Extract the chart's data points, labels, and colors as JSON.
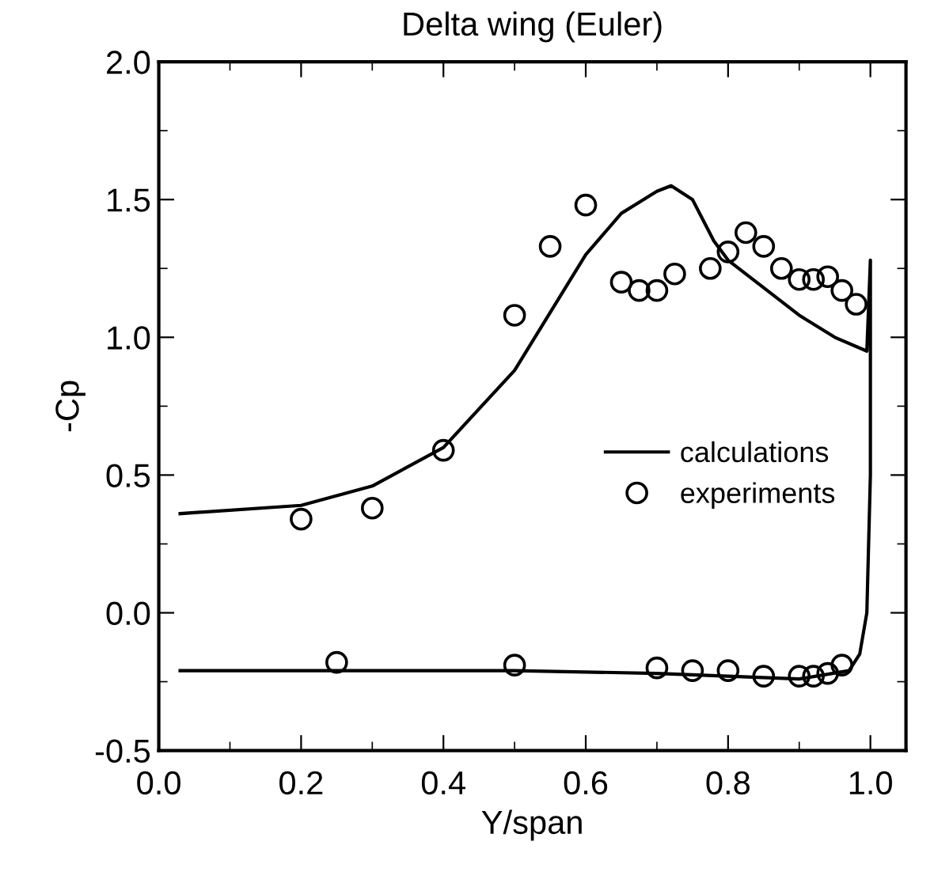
{
  "chart_data": {
    "type": "line",
    "title": "Delta wing (Euler)",
    "xlabel": "Y/span",
    "ylabel": "-Cp",
    "xlim": [
      0,
      1.05
    ],
    "ylim": [
      -0.5,
      2.0
    ],
    "xticks": [
      {
        "value": 0.0,
        "label": "0.0"
      },
      0.2,
      0.4,
      0.6,
      0.8,
      {
        "value": 1.0,
        "label": "1.0"
      }
    ],
    "yticks": [
      {
        "value": -0.5,
        "label": "-0.5"
      },
      {
        "value": 0.0,
        "label": "0.0"
      },
      0.5,
      {
        "value": 1.0,
        "label": "1.0"
      },
      1.5,
      {
        "value": 2.0,
        "label": "2.0"
      }
    ],
    "grid": false,
    "legend": "right",
    "series": [
      {
        "name": "calculations",
        "color": "#000000",
        "marker": "none",
        "line_style": "solid",
        "x": [
          0.03,
          0.2,
          0.3,
          0.4,
          0.5,
          0.6,
          0.65,
          0.7,
          0.72,
          0.75,
          0.78,
          0.8,
          0.85,
          0.9,
          0.95,
          0.995,
          1.0,
          1.0,
          0.995,
          0.985,
          0.97,
          0.9,
          0.8,
          0.7,
          0.5,
          0.03
        ],
        "values": [
          0.36,
          0.39,
          0.46,
          0.6,
          0.88,
          1.3,
          1.45,
          1.53,
          1.55,
          1.5,
          1.35,
          1.28,
          1.18,
          1.08,
          1.0,
          0.95,
          1.28,
          0.5,
          0.0,
          -0.15,
          -0.21,
          -0.24,
          -0.23,
          -0.22,
          -0.21,
          -0.21
        ]
      },
      {
        "name": "experiments",
        "type": "scatter",
        "color": "#000000",
        "marker": "circle",
        "x": [
          0.2,
          0.3,
          0.4,
          0.5,
          0.55,
          0.6,
          0.65,
          0.675,
          0.7,
          0.725,
          0.775,
          0.8,
          0.825,
          0.85,
          0.875,
          0.9,
          0.92,
          0.94,
          0.96,
          0.98,
          0.25,
          0.5,
          0.7,
          0.75,
          0.8,
          0.85,
          0.9,
          0.92,
          0.94,
          0.96
        ],
        "values": [
          0.34,
          0.38,
          0.59,
          1.08,
          1.33,
          1.48,
          1.2,
          1.17,
          1.17,
          1.23,
          1.25,
          1.31,
          1.38,
          1.33,
          1.25,
          1.21,
          1.21,
          1.22,
          1.17,
          1.12,
          -0.18,
          -0.19,
          -0.2,
          -0.21,
          -0.21,
          -0.23,
          -0.23,
          -0.23,
          -0.22,
          -0.19
        ]
      }
    ]
  }
}
